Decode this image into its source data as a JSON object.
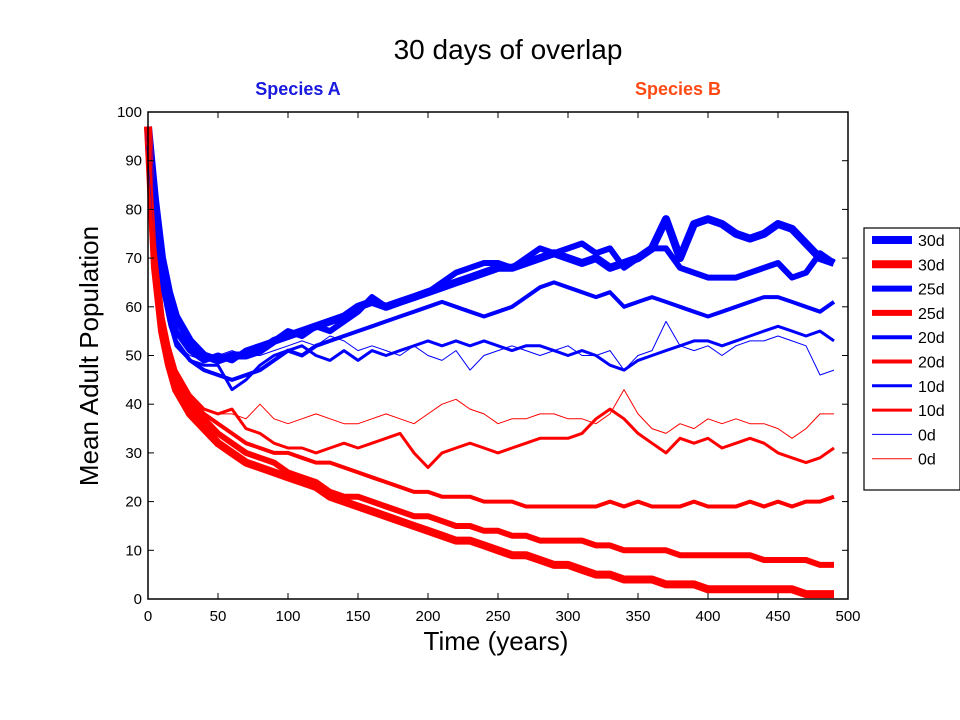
{
  "chart_data": {
    "type": "line",
    "title": "30 days of overlap",
    "species_labels": [
      {
        "text": "Species A",
        "color": "#1a1adf"
      },
      {
        "text": "Species B",
        "color": "#ff4a14"
      }
    ],
    "xlabel": "Time (years)",
    "ylabel": "Mean Adult Population",
    "xlim": [
      0,
      500
    ],
    "ylim": [
      0,
      100
    ],
    "xticks": [
      0,
      50,
      100,
      150,
      200,
      250,
      300,
      350,
      400,
      450,
      500
    ],
    "yticks": [
      0,
      10,
      20,
      30,
      40,
      50,
      60,
      70,
      80,
      90,
      100
    ],
    "grid": false,
    "legend_position": "right outside",
    "x": [
      0,
      5,
      10,
      15,
      20,
      30,
      40,
      50,
      60,
      70,
      80,
      90,
      100,
      110,
      120,
      130,
      140,
      150,
      160,
      170,
      180,
      190,
      200,
      210,
      220,
      230,
      240,
      250,
      260,
      270,
      280,
      290,
      300,
      310,
      320,
      330,
      340,
      350,
      360,
      370,
      380,
      390,
      400,
      410,
      420,
      430,
      440,
      450,
      460,
      470,
      480,
      490
    ],
    "series": [
      {
        "name": "30d",
        "color": "#0000ff",
        "weight": "heavy",
        "values": [
          97,
          82,
          70,
          63,
          58,
          53,
          50,
          49,
          50,
          50,
          51,
          53,
          54,
          55,
          56,
          57,
          58,
          60,
          61,
          60,
          61,
          62,
          63,
          64,
          65,
          66,
          67,
          68,
          68,
          69,
          70,
          71,
          70,
          69,
          70,
          68,
          69,
          70,
          72,
          78,
          70,
          77,
          78,
          77,
          75,
          74,
          75,
          77,
          76,
          73,
          70,
          69
        ]
      },
      {
        "name": "30d",
        "color": "#ff0000",
        "weight": "heavy",
        "values": [
          97,
          68,
          55,
          48,
          43,
          38,
          35,
          32,
          30,
          28,
          27,
          26,
          25,
          24,
          23,
          21,
          20,
          19,
          18,
          17,
          16,
          15,
          14,
          13,
          12,
          12,
          11,
          10,
          9,
          9,
          8,
          7,
          7,
          6,
          5,
          5,
          4,
          4,
          4,
          3,
          3,
          3,
          2,
          2,
          2,
          2,
          2,
          2,
          2,
          1,
          1,
          1
        ]
      },
      {
        "name": "25d",
        "color": "#0000ff",
        "weight": "thick",
        "values": [
          96,
          80,
          68,
          60,
          55,
          51,
          49,
          50,
          49,
          51,
          52,
          53,
          55,
          54,
          56,
          55,
          57,
          59,
          62,
          60,
          61,
          62,
          63,
          65,
          67,
          68,
          69,
          69,
          68,
          70,
          72,
          71,
          72,
          73,
          71,
          72,
          68,
          70,
          72,
          72,
          68,
          67,
          66,
          66,
          66,
          67,
          68,
          69,
          66,
          67,
          71,
          69
        ]
      },
      {
        "name": "25d",
        "color": "#ff0000",
        "weight": "thick",
        "values": [
          97,
          70,
          57,
          50,
          45,
          40,
          37,
          34,
          32,
          30,
          29,
          28,
          26,
          25,
          24,
          22,
          21,
          21,
          20,
          19,
          18,
          17,
          17,
          16,
          15,
          15,
          14,
          14,
          13,
          13,
          12,
          12,
          12,
          12,
          11,
          11,
          10,
          10,
          10,
          10,
          9,
          9,
          9,
          9,
          9,
          9,
          8,
          8,
          8,
          8,
          7,
          7
        ]
      },
      {
        "name": "20d",
        "color": "#0000ff",
        "weight": "medium",
        "values": [
          95,
          78,
          66,
          58,
          53,
          49,
          47,
          46,
          45,
          46,
          47,
          49,
          51,
          50,
          52,
          53,
          54,
          55,
          56,
          57,
          58,
          59,
          60,
          61,
          60,
          59,
          58,
          59,
          60,
          62,
          64,
          65,
          64,
          63,
          62,
          63,
          60,
          61,
          62,
          61,
          60,
          59,
          58,
          59,
          60,
          61,
          62,
          62,
          61,
          60,
          59,
          61
        ]
      },
      {
        "name": "20d",
        "color": "#ff0000",
        "weight": "medium",
        "values": [
          96,
          71,
          58,
          51,
          46,
          41,
          38,
          36,
          34,
          32,
          31,
          30,
          30,
          29,
          28,
          28,
          27,
          26,
          25,
          24,
          23,
          22,
          22,
          21,
          21,
          21,
          20,
          20,
          20,
          19,
          19,
          19,
          19,
          19,
          19,
          20,
          19,
          20,
          19,
          19,
          19,
          20,
          19,
          19,
          19,
          20,
          19,
          20,
          19,
          20,
          20,
          21
        ]
      },
      {
        "name": "10d",
        "color": "#0000ff",
        "weight": "normal",
        "values": [
          93,
          76,
          64,
          57,
          52,
          49,
          48,
          48,
          43,
          45,
          48,
          50,
          51,
          52,
          50,
          49,
          51,
          49,
          51,
          50,
          51,
          52,
          53,
          52,
          53,
          52,
          53,
          52,
          51,
          52,
          52,
          51,
          50,
          51,
          50,
          48,
          47,
          49,
          50,
          51,
          52,
          53,
          53,
          52,
          53,
          54,
          55,
          56,
          55,
          54,
          55,
          53
        ]
      },
      {
        "name": "10d",
        "color": "#ff0000",
        "weight": "normal",
        "values": [
          95,
          72,
          59,
          52,
          47,
          42,
          39,
          38,
          39,
          35,
          34,
          32,
          31,
          31,
          30,
          31,
          32,
          31,
          32,
          33,
          34,
          30,
          27,
          30,
          31,
          32,
          31,
          30,
          31,
          32,
          33,
          33,
          33,
          34,
          37,
          39,
          37,
          34,
          32,
          30,
          33,
          32,
          33,
          31,
          32,
          33,
          32,
          30,
          29,
          28,
          29,
          31
        ]
      },
      {
        "name": "0d",
        "color": "#0000ff",
        "weight": "thin",
        "values": [
          90,
          74,
          63,
          56,
          52,
          50,
          49,
          50,
          51,
          50,
          50,
          51,
          52,
          53,
          52,
          54,
          53,
          51,
          52,
          51,
          50,
          52,
          50,
          49,
          51,
          47,
          50,
          51,
          52,
          51,
          50,
          51,
          52,
          50,
          50,
          51,
          47,
          50,
          51,
          57,
          52,
          51,
          52,
          50,
          52,
          53,
          53,
          54,
          53,
          52,
          46,
          47
        ]
      },
      {
        "name": "0d",
        "color": "#ff0000",
        "weight": "thin",
        "values": [
          92,
          74,
          60,
          52,
          47,
          42,
          39,
          38,
          38,
          37,
          40,
          37,
          36,
          37,
          38,
          37,
          36,
          36,
          37,
          38,
          37,
          36,
          38,
          40,
          41,
          39,
          38,
          36,
          37,
          37,
          38,
          38,
          37,
          37,
          36,
          38,
          43,
          38,
          35,
          34,
          36,
          35,
          37,
          36,
          37,
          36,
          36,
          35,
          33,
          35,
          38,
          38
        ]
      }
    ]
  }
}
